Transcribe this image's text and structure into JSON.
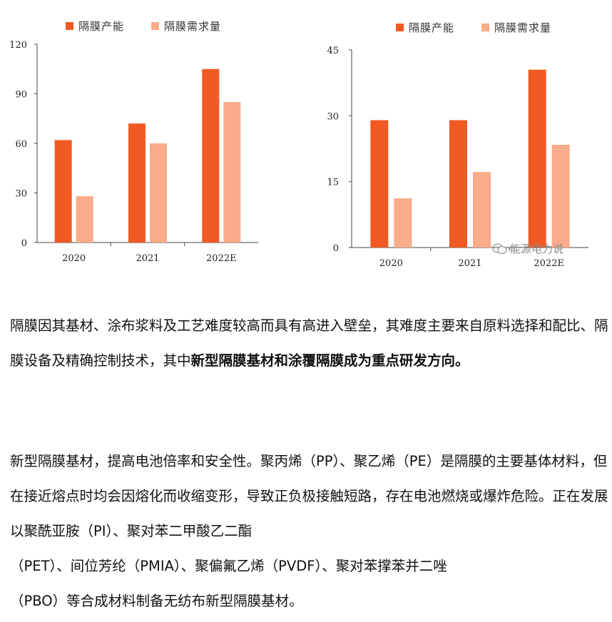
{
  "colors": {
    "capacity": "#f05a22",
    "demand": "#f9ab8a",
    "axis": "#444444"
  },
  "chart_data": [
    {
      "type": "bar",
      "legend": [
        "隔膜产能",
        "隔膜需求量"
      ],
      "categories": [
        "2020",
        "2021",
        "2022E"
      ],
      "series": [
        {
          "name": "隔膜产能",
          "values": [
            62,
            72,
            105
          ]
        },
        {
          "name": "隔膜需求量",
          "values": [
            28,
            60,
            85
          ]
        }
      ],
      "yticks": [
        "0",
        "30",
        "60",
        "90",
        "120"
      ],
      "ylim": [
        0,
        120
      ],
      "grid": false,
      "legend_position": "top"
    },
    {
      "type": "bar",
      "legend": [
        "隔膜产能",
        "隔膜需求量"
      ],
      "categories": [
        "2020",
        "2021",
        "2022E"
      ],
      "series": [
        {
          "name": "隔膜产能",
          "values": [
            29,
            29,
            40.5
          ]
        },
        {
          "name": "隔膜需求量",
          "values": [
            11.2,
            17.2,
            23.4
          ]
        }
      ],
      "yticks": [
        "0",
        "15",
        "30",
        "45"
      ],
      "ylim": [
        0,
        45
      ],
      "grid": false,
      "legend_position": "top"
    }
  ],
  "watermark": {
    "text": "能源电力说",
    "icon": "wechat-icon"
  },
  "paragraph1": {
    "part1": "隔膜因其基材、涂布浆料及工艺难度较高而具有高进入壁垒，其难度主要来自原料选择和配比、隔膜设备及精确控制技术，其中",
    "bold": "新型隔膜基材和涂覆隔膜成为重点研发方向。"
  },
  "paragraph2": {
    "line1": "新型隔膜基材，提高电池倍率和安全性。聚丙烯（PP）、聚乙烯（PE）是隔膜的主要基体材料，但在接近熔点时均会因熔化而收缩变形，导致正负极接触短路，存在电池燃烧或爆炸危险。正在发展以聚酰亚胺（PI）、聚对苯二甲酸乙二酯",
    "line2": "（PET）、间位芳纶（PMIA）、聚偏氟乙烯（PVDF）、聚对苯撑苯并二唑",
    "line3": "（PBO）等合成材料制备无纺布新型隔膜基材。"
  }
}
